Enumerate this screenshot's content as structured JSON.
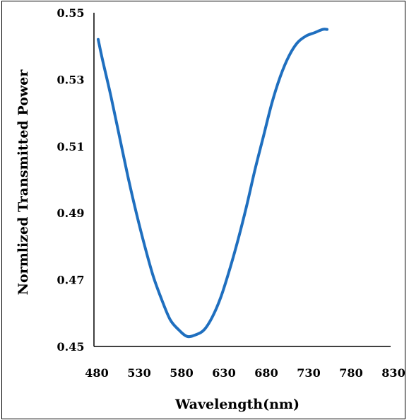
{
  "chart_data": {
    "type": "line",
    "title": "",
    "xlabel": "Wavelength(nm)",
    "ylabel": "Normlized  Transmitted  Power",
    "xlim": [
      480,
      830
    ],
    "ylim": [
      0.45,
      0.55
    ],
    "x_ticks": [
      "480",
      "530",
      "580",
      "630",
      "680",
      "730",
      "780",
      "830"
    ],
    "y_ticks": [
      "0.45",
      "0.47",
      "0.49",
      "0.51",
      "0.53",
      "0.55"
    ],
    "grid": false,
    "legend": "none",
    "series": [
      {
        "color": "#1f6fbf",
        "x": [
          485,
          490,
          500,
          510,
          520,
          530,
          540,
          550,
          560,
          570,
          580,
          590,
          600,
          610,
          620,
          630,
          640,
          650,
          660,
          670,
          680,
          690,
          700,
          710,
          720,
          730,
          740,
          750,
          755
        ],
        "values": [
          0.542,
          0.536,
          0.525,
          0.513,
          0.501,
          0.49,
          0.48,
          0.471,
          0.464,
          0.458,
          0.455,
          0.453,
          0.4535,
          0.455,
          0.459,
          0.465,
          0.473,
          0.482,
          0.492,
          0.503,
          0.513,
          0.523,
          0.531,
          0.537,
          0.541,
          0.543,
          0.544,
          0.545,
          0.545
        ]
      }
    ]
  }
}
